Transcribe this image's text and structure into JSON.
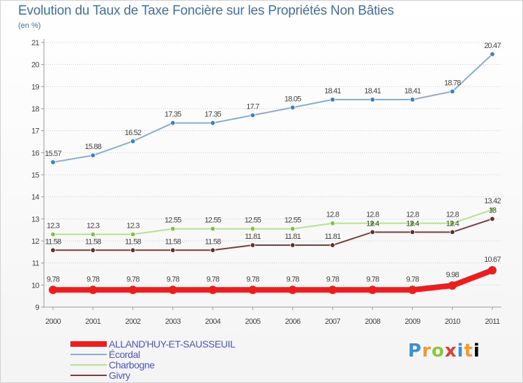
{
  "header": {
    "title": "Evolution du Taux de Taxe Foncière sur les Propriétés Non Bâties",
    "unit": "(en %)"
  },
  "logo_text": "Proxiti",
  "chart_data": {
    "type": "line",
    "title": "Evolution du Taux de Taxe Foncière sur les Propriétés Non Bâties",
    "ylabel": "(en %)",
    "xlabel": "",
    "x": [
      "2000",
      "2001",
      "2002",
      "2003",
      "2004",
      "2005",
      "2006",
      "2007",
      "2008",
      "2009",
      "2010",
      "2011"
    ],
    "ylim": [
      9,
      21
    ],
    "yticks": [
      "9",
      "10",
      "11",
      "12",
      "13",
      "14",
      "15",
      "16",
      "17",
      "18",
      "19",
      "20",
      "21"
    ],
    "grid": "horizontal dotted",
    "legend_position": "bottom-left",
    "series": [
      {
        "name": "Écordal",
        "color": "#87acd6",
        "marker_color": "#3a7fc1",
        "values": [
          15.57,
          15.88,
          16.52,
          17.35,
          17.35,
          17.7,
          18.05,
          18.41,
          18.41,
          18.41,
          18.78,
          20.47
        ],
        "labels": [
          "15.57",
          "15.88",
          "16.52",
          "17.35",
          "17.35",
          "17.7",
          "18.05",
          "18.41",
          "18.41",
          "18.41",
          "18.78",
          "20.47"
        ]
      },
      {
        "name": "Charbogne",
        "color": "#b6e28a",
        "marker_color": "#7cc242",
        "values": [
          12.3,
          12.3,
          12.3,
          12.55,
          12.55,
          12.55,
          12.55,
          12.8,
          12.8,
          12.8,
          12.8,
          13.42
        ],
        "labels": [
          "12.3",
          "12.3",
          "12.3",
          "12.55",
          "12.55",
          "12.55",
          "12.55",
          "12.8",
          "12.8",
          "12.8",
          "12.8",
          "13.42"
        ]
      },
      {
        "name": "Givry",
        "color": "#7a3b3b",
        "marker_color": "#6a2a2a",
        "values": [
          11.58,
          11.58,
          11.58,
          11.58,
          11.58,
          11.81,
          11.81,
          11.81,
          12.4,
          12.4,
          12.4,
          13.0
        ],
        "labels": [
          "11.58",
          "11.58",
          "11.58",
          "11.58",
          "11.58",
          "11.81",
          "11.81",
          "11.81",
          "12.4",
          "12.4",
          "12.4",
          "13"
        ]
      },
      {
        "name": "ALLAND'HUY-ET-SAUSSEUIL",
        "color": "#ee1c1c",
        "marker_color": "#ee1c1c",
        "values": [
          9.78,
          9.78,
          9.78,
          9.78,
          9.78,
          9.78,
          9.78,
          9.78,
          9.78,
          9.78,
          9.98,
          10.67
        ],
        "labels": [
          "9.78",
          "9.78",
          "9.78",
          "9.78",
          "9.78",
          "9.78",
          "9.78",
          "9.78",
          "9.78",
          "9.78",
          "9.98",
          "10.67"
        ]
      }
    ],
    "legend": [
      "ALLAND'HUY-ET-SAUSSEUIL",
      "Écordal",
      "Charbogne",
      "Givry"
    ]
  }
}
